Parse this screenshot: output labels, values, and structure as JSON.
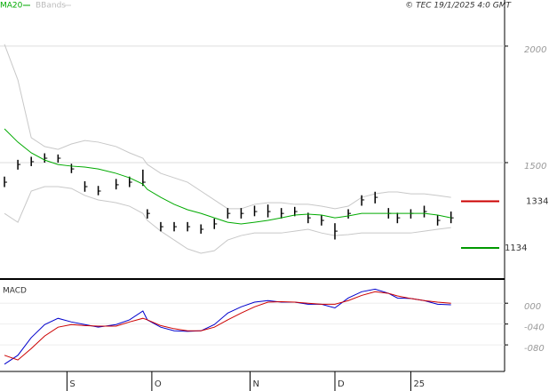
{
  "chart_data": [
    {
      "type": "ohlc",
      "source": "© TEC 19/1/2025 4:0 GMT",
      "x": [
        0,
        3,
        6,
        9,
        12,
        15,
        18,
        21,
        25,
        28,
        31,
        32,
        35,
        38,
        41,
        44,
        47,
        50,
        53,
        56,
        59,
        62,
        65,
        68,
        71,
        74,
        77,
        80,
        83,
        86,
        88,
        91,
        94,
        97,
        100
      ],
      "high": [
        1440,
        1512,
        1525,
        1540,
        1535,
        1495,
        1420,
        1400,
        1430,
        1440,
        1470,
        1300,
        1245,
        1245,
        1245,
        1235,
        1260,
        1305,
        1305,
        1315,
        1320,
        1305,
        1310,
        1285,
        1275,
        1240,
        1300,
        1360,
        1375,
        1305,
        1285,
        1300,
        1315,
        1275,
        1290
      ],
      "low": [
        1395,
        1470,
        1485,
        1500,
        1500,
        1455,
        1375,
        1360,
        1385,
        1395,
        1400,
        1260,
        1205,
        1205,
        1205,
        1195,
        1215,
        1260,
        1260,
        1270,
        1265,
        1260,
        1270,
        1240,
        1230,
        1170,
        1260,
        1315,
        1325,
        1260,
        1240,
        1260,
        1265,
        1230,
        1240
      ],
      "close": [
        1416,
        1492,
        1504,
        1519,
        1519,
        1473,
        1397,
        1378,
        1405,
        1416,
        1416,
        1282,
        1225,
        1225,
        1225,
        1214,
        1237,
        1282,
        1282,
        1290,
        1290,
        1282,
        1290,
        1263,
        1252,
        1206,
        1282,
        1340,
        1351,
        1282,
        1263,
        1282,
        1290,
        1252,
        1263
      ],
      "bar_color": "#000000",
      "lines": [
        {
          "name": "MA20",
          "color": "#00aa00",
          "values": [
            1645,
            1588,
            1542,
            1511,
            1492,
            1485,
            1481,
            1473,
            1454,
            1435,
            1408,
            1385,
            1351,
            1321,
            1298,
            1282,
            1263,
            1244,
            1237,
            1244,
            1252,
            1263,
            1275,
            1279,
            1275,
            1263,
            1271,
            1282,
            1282,
            1282,
            1282,
            1282,
            1282,
            1275,
            1263
          ]
        },
        {
          "name": "BBands",
          "color": "#c8c8c8",
          "upper": [
            2008,
            1855,
            1607,
            1569,
            1557,
            1580,
            1595,
            1588,
            1569,
            1542,
            1519,
            1492,
            1454,
            1435,
            1416,
            1378,
            1340,
            1302,
            1302,
            1321,
            1328,
            1328,
            1321,
            1321,
            1313,
            1302,
            1313,
            1351,
            1366,
            1374,
            1374,
            1366,
            1366,
            1359,
            1351
          ],
          "lower": [
            1282,
            1244,
            1378,
            1397,
            1397,
            1389,
            1359,
            1340,
            1328,
            1313,
            1282,
            1252,
            1206,
            1168,
            1130,
            1111,
            1122,
            1168,
            1187,
            1198,
            1198,
            1198,
            1206,
            1214,
            1198,
            1187,
            1191,
            1198,
            1198,
            1198,
            1198,
            1198,
            1206,
            1214,
            1221
          ]
        }
      ],
      "levels": [
        {
          "value": 1334,
          "color": "#cc0000"
        },
        {
          "value": 1134,
          "color": "#009900"
        }
      ],
      "xlim": [
        -1,
        112
      ],
      "ylim": [
        1008,
        2198
      ],
      "yticks": [
        1500,
        2000
      ],
      "grid": true,
      "xticks": [
        {
          "value": 14,
          "label": "S"
        },
        {
          "value": 33,
          "label": "O"
        },
        {
          "value": 55,
          "label": "N"
        },
        {
          "value": 74,
          "label": "D"
        },
        {
          "value": 91,
          "label": "25"
        }
      ]
    },
    {
      "type": "line",
      "title": "MACD",
      "series": [
        {
          "color": "#0000cc",
          "values": [
            -1.17,
            -1.0,
            -0.66,
            -0.41,
            -0.29,
            -0.36,
            -0.41,
            -0.46,
            -0.41,
            -0.32,
            -0.15,
            -0.32,
            -0.46,
            -0.53,
            -0.54,
            -0.53,
            -0.41,
            -0.19,
            -0.07,
            0.02,
            0.05,
            0.02,
            0.02,
            -0.02,
            -0.02,
            -0.09,
            0.1,
            0.22,
            0.27,
            0.19,
            0.1,
            0.09,
            0.05,
            -0.02,
            -0.03
          ]
        },
        {
          "color": "#cc0000",
          "values": [
            -1.0,
            -1.09,
            -0.87,
            -0.63,
            -0.46,
            -0.41,
            -0.43,
            -0.44,
            -0.44,
            -0.36,
            -0.29,
            -0.32,
            -0.43,
            -0.49,
            -0.53,
            -0.53,
            -0.46,
            -0.32,
            -0.19,
            -0.07,
            0.02,
            0.03,
            0.02,
            0,
            -0.02,
            -0.02,
            0.05,
            0.15,
            0.22,
            0.19,
            0.14,
            0.09,
            0.05,
            0.02,
            0
          ]
        }
      ],
      "ylim": [
        -1.31,
        0.43
      ],
      "grid": true,
      "yticks": [
        {
          "value": 0,
          "label": "000"
        },
        {
          "value": -0.4,
          "label": "-040"
        },
        {
          "value": -0.8,
          "label": "-080"
        }
      ]
    }
  ]
}
